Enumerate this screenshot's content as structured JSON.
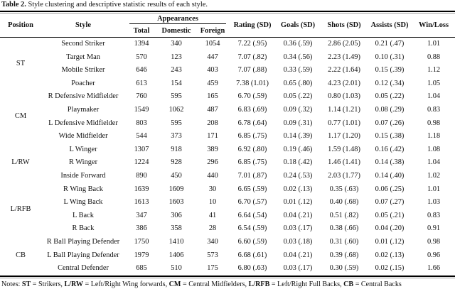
{
  "caption": {
    "label": "Table 2.",
    "text": " Style clustering and descriptive statistic results of each style."
  },
  "table": {
    "header": {
      "position": "Position",
      "style": "Style",
      "appearances": "Appearances",
      "appearance_cols": [
        "Total",
        "Domestic",
        "Foreign"
      ],
      "stat_cols": [
        "Rating (SD)",
        "Goals (SD)",
        "Shots (SD)",
        "Assists (SD)",
        "Win/Loss"
      ]
    },
    "groups": [
      {
        "position": "ST",
        "rows": [
          {
            "cells": [
              "Second Striker",
              "1394",
              "340",
              "1054",
              "7.22 (.95)",
              "0.36 (.59)",
              "2.86 (2.05)",
              "0.21 (.47)",
              "1.01"
            ]
          },
          {
            "cells": [
              "Target Man",
              "570",
              "123",
              "447",
              "7.07 (.82)",
              "0.34 (.56)",
              "2.23 (1.49)",
              "0.10 (.31)",
              "0.88"
            ]
          },
          {
            "cells": [
              "Mobile Striker",
              "646",
              "243",
              "403",
              "7.07 (.88)",
              "0.33 (.59)",
              "2.22 (1.64)",
              "0.15 (.39)",
              "1.12"
            ]
          },
          {
            "cells": [
              "Poacher",
              "613",
              "154",
              "459",
              "7.38 (1.01)",
              "0.65 (.80)",
              "4.23 (2.01)",
              "0.12 (.34)",
              "1.05"
            ]
          }
        ]
      },
      {
        "position": "CM",
        "rows": [
          {
            "cells": [
              "R Defensive Midfielder",
              "760",
              "595",
              "165",
              "6.70 (.59)",
              "0.05 (.22)",
              "0.80 (1.03)",
              "0.05 (.22)",
              "1.04"
            ]
          },
          {
            "cells": [
              "Playmaker",
              "1549",
              "1062",
              "487",
              "6.83 (.69)",
              "0.09 (.32)",
              "1.14 (1.21)",
              "0.08 (.29)",
              "0.83"
            ]
          },
          {
            "cells": [
              "L Defensive Midfielder",
              "803",
              "595",
              "208",
              "6.78 (.64)",
              "0.09 (.31)",
              "0.77 (1.01)",
              "0.07 (.26)",
              "0.98"
            ]
          },
          {
            "cells": [
              "Wide Midfielder",
              "544",
              "373",
              "171",
              "6.85 (.75)",
              "0.14 (.39)",
              "1.17 (1.20)",
              "0.15 (.38)",
              "1.18"
            ]
          }
        ]
      },
      {
        "position": "L/RW",
        "rows": [
          {
            "cells": [
              "L Winger",
              "1307",
              "918",
              "389",
              "6.92 (.80)",
              "0.19 (.46)",
              "1.59 (1.48)",
              "0.16 (.42)",
              "1.08"
            ]
          },
          {
            "cells": [
              "R Winger",
              "1224",
              "928",
              "296",
              "6.85 (.75)",
              "0.18 (.42)",
              "1.46 (1.41)",
              "0.14 (.38)",
              "1.04"
            ]
          },
          {
            "cells": [
              "Inside Forward",
              "890",
              "450",
              "440",
              "7.01 (.87)",
              "0.24 (.53)",
              "2.03 (1.77)",
              "0.14 (.40)",
              "1.02"
            ]
          }
        ]
      },
      {
        "position": "L/RFB",
        "rows": [
          {
            "cells": [
              "R Wing Back",
              "1639",
              "1609",
              "30",
              "6.65 (.59)",
              "0.02 (.13)",
              "0.35 (.63)",
              "0.06 (.25)",
              "1.01"
            ]
          },
          {
            "cells": [
              "L Wing Back",
              "1613",
              "1603",
              "10",
              "6.70 (.57)",
              "0.01 (.12)",
              "0.40 (.68)",
              "0.07 (.27)",
              "1.03"
            ]
          },
          {
            "cells": [
              "L Back",
              "347",
              "306",
              "41",
              "6.64 (.54)",
              "0.04 (.21)",
              "0.51 (.82)",
              "0.05 (.21)",
              "0.83"
            ]
          },
          {
            "cells": [
              "R Back",
              "386",
              "358",
              "28",
              "6.54 (.59)",
              "0.03 (.17)",
              "0.38 (.66)",
              "0.04 (.20)",
              "0.91"
            ]
          }
        ]
      },
      {
        "position": "CB",
        "rows": [
          {
            "cells": [
              "R Ball Playing Defender",
              "1750",
              "1410",
              "340",
              "6.60 (.59)",
              "0.03 (.18)",
              "0.31 (.60)",
              "0.01 (.12)",
              "0.98"
            ]
          },
          {
            "cells": [
              "L Ball Playing Defender",
              "1979",
              "1406",
              "573",
              "6.68 (.61)",
              "0.04 (.21)",
              "0.39 (.68)",
              "0.02 (.13)",
              "0.96"
            ]
          },
          {
            "cells": [
              "Central Defender",
              "685",
              "510",
              "175",
              "6.80 (.63)",
              "0.03 (.17)",
              "0.30 (.59)",
              "0.02 (.15)",
              "1.66"
            ]
          }
        ]
      }
    ]
  },
  "notes": {
    "prefix": "Notes: ",
    "definitions": [
      {
        "abbr": "ST",
        "text": " = Strikers, "
      },
      {
        "abbr": "L/RW",
        "text": " = Left/Right Wing forwards, "
      },
      {
        "abbr": "CM",
        "text": " = Central Midfielders, "
      },
      {
        "abbr": "L/RFB",
        "text": " = Left/Right Full Backs, "
      },
      {
        "abbr": "CB",
        "text": " = Central Backs"
      }
    ]
  }
}
